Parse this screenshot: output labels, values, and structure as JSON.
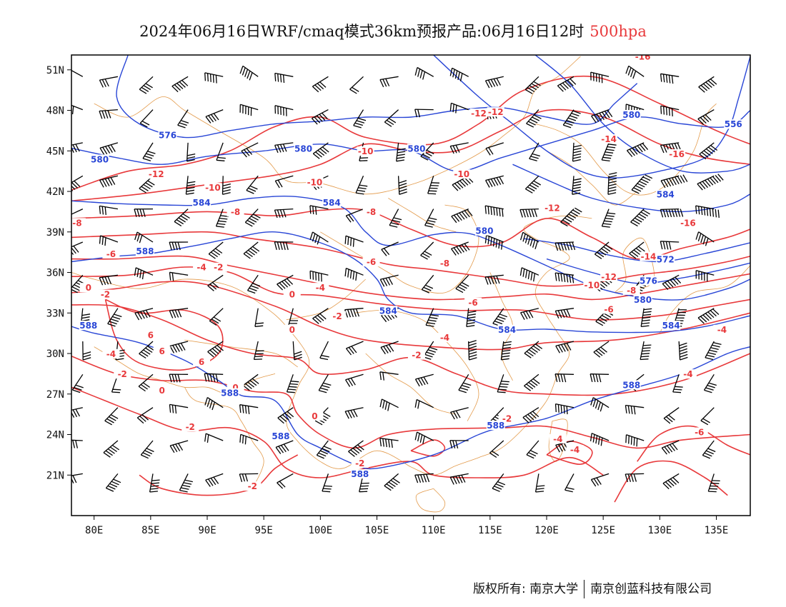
{
  "header": {
    "title": "2024年06月16日WRF/cmaq模式36km预报产品:06月16日12时",
    "level": "500hpa"
  },
  "map": {
    "lat_labels": [
      "51N",
      "48N",
      "45N",
      "42N",
      "39N",
      "36N",
      "33N",
      "30N",
      "27N",
      "24N",
      "21N"
    ],
    "lon_labels": [
      "80E",
      "85E",
      "90E",
      "95E",
      "100E",
      "105E",
      "110E",
      "115E",
      "120E",
      "125E",
      "130E",
      "135E"
    ],
    "colors": {
      "height": "#2946d6",
      "temperature": "#e8393b",
      "boundary": "#e39a4a",
      "wind": "#000000"
    },
    "height_labels": [
      {
        "text": "576",
        "lon": 86.5,
        "lat": 46.0
      },
      {
        "text": "580",
        "lon": 98.5,
        "lat": 45.0
      },
      {
        "text": "580",
        "lon": 108.5,
        "lat": 45.0
      },
      {
        "text": "580",
        "lon": 80.5,
        "lat": 44.2
      },
      {
        "text": "584",
        "lon": 89.5,
        "lat": 41.0
      },
      {
        "text": "584",
        "lon": 101.0,
        "lat": 41.0
      },
      {
        "text": "580",
        "lon": 114.5,
        "lat": 38.9
      },
      {
        "text": "588",
        "lon": 84.5,
        "lat": 37.4
      },
      {
        "text": "584",
        "lon": 106.0,
        "lat": 33.0
      },
      {
        "text": "588",
        "lon": 79.5,
        "lat": 31.9
      },
      {
        "text": "584",
        "lon": 116.5,
        "lat": 31.6
      },
      {
        "text": "588",
        "lon": 92.0,
        "lat": 26.9
      },
      {
        "text": "588",
        "lon": 96.5,
        "lat": 23.7
      },
      {
        "text": "588",
        "lon": 103.5,
        "lat": 20.9
      },
      {
        "text": "588",
        "lon": 115.5,
        "lat": 24.5
      },
      {
        "text": "588",
        "lon": 127.5,
        "lat": 27.5
      },
      {
        "text": "580",
        "lon": 127.5,
        "lat": 47.5
      },
      {
        "text": "556",
        "lon": 136.5,
        "lat": 46.8
      },
      {
        "text": "584",
        "lon": 130.5,
        "lat": 41.6
      },
      {
        "text": "572",
        "lon": 130.5,
        "lat": 36.8
      },
      {
        "text": "576",
        "lon": 129.0,
        "lat": 35.2
      },
      {
        "text": "580",
        "lon": 128.5,
        "lat": 33.8
      },
      {
        "text": "584",
        "lon": 131.0,
        "lat": 31.9
      }
    ],
    "temperature_labels": [
      {
        "text": "-12",
        "lon": 85.5,
        "lat": 43.1
      },
      {
        "text": "-10",
        "lon": 90.5,
        "lat": 42.1
      },
      {
        "text": "-8",
        "lon": 92.5,
        "lat": 40.3
      },
      {
        "text": "-8",
        "lon": 78.5,
        "lat": 39.5
      },
      {
        "text": "-6",
        "lon": 81.5,
        "lat": 37.2
      },
      {
        "text": "-10",
        "lon": 99.5,
        "lat": 42.5
      },
      {
        "text": "-10",
        "lon": 104.0,
        "lat": 44.8
      },
      {
        "text": "-8",
        "lon": 104.5,
        "lat": 40.3
      },
      {
        "text": "-10",
        "lon": 112.5,
        "lat": 43.1
      },
      {
        "text": "-12",
        "lon": 114.0,
        "lat": 47.6
      },
      {
        "text": "-12",
        "lon": 115.5,
        "lat": 47.7
      },
      {
        "text": "-12",
        "lon": 120.5,
        "lat": 40.6
      },
      {
        "text": "-14",
        "lon": 125.5,
        "lat": 45.7
      },
      {
        "text": "-16",
        "lon": 128.5,
        "lat": 51.8
      },
      {
        "text": "-16",
        "lon": 131.5,
        "lat": 44.6
      },
      {
        "text": "-16",
        "lon": 132.5,
        "lat": 39.5
      },
      {
        "text": "-14",
        "lon": 129.0,
        "lat": 37.0
      },
      {
        "text": "-12",
        "lon": 125.5,
        "lat": 35.5
      },
      {
        "text": "-10",
        "lon": 124.0,
        "lat": 34.9
      },
      {
        "text": "-8",
        "lon": 127.5,
        "lat": 34.5
      },
      {
        "text": "-6",
        "lon": 125.5,
        "lat": 33.1
      },
      {
        "text": "-4",
        "lon": 89.5,
        "lat": 36.2
      },
      {
        "text": "-2",
        "lon": 91.0,
        "lat": 36.2
      },
      {
        "text": "0",
        "lon": 79.5,
        "lat": 34.7
      },
      {
        "text": "-2",
        "lon": 81.0,
        "lat": 34.2
      },
      {
        "text": "0",
        "lon": 97.5,
        "lat": 34.2
      },
      {
        "text": "-4",
        "lon": 100.0,
        "lat": 34.7
      },
      {
        "text": "-6",
        "lon": 104.5,
        "lat": 36.6
      },
      {
        "text": "-8",
        "lon": 111.0,
        "lat": 36.5
      },
      {
        "text": "-6",
        "lon": 113.5,
        "lat": 33.6
      },
      {
        "text": "-2",
        "lon": 101.5,
        "lat": 32.6
      },
      {
        "text": "0",
        "lon": 97.5,
        "lat": 31.6
      },
      {
        "text": "6",
        "lon": 85.0,
        "lat": 31.2
      },
      {
        "text": "6",
        "lon": 86.0,
        "lat": 30.0
      },
      {
        "text": "6",
        "lon": 89.5,
        "lat": 29.2
      },
      {
        "text": "-4",
        "lon": 81.5,
        "lat": 29.8
      },
      {
        "text": "-2",
        "lon": 82.5,
        "lat": 28.3
      },
      {
        "text": "0",
        "lon": 86.0,
        "lat": 27.1
      },
      {
        "text": "0",
        "lon": 92.5,
        "lat": 27.3
      },
      {
        "text": "-2",
        "lon": 88.5,
        "lat": 24.4
      },
      {
        "text": "0",
        "lon": 99.5,
        "lat": 25.2
      },
      {
        "text": "-2",
        "lon": 108.5,
        "lat": 29.7
      },
      {
        "text": "-4",
        "lon": 111.0,
        "lat": 31.0
      },
      {
        "text": "-2",
        "lon": 103.5,
        "lat": 21.7
      },
      {
        "text": "-2",
        "lon": 94.0,
        "lat": 20.0
      },
      {
        "text": "-2",
        "lon": 116.5,
        "lat": 25.0
      },
      {
        "text": "-4",
        "lon": 121.0,
        "lat": 23.5
      },
      {
        "text": "-4",
        "lon": 122.5,
        "lat": 22.7
      },
      {
        "text": "-4",
        "lon": 135.5,
        "lat": 31.6
      },
      {
        "text": "-4",
        "lon": 132.5,
        "lat": 28.3
      },
      {
        "text": "-6",
        "lon": 133.5,
        "lat": 24.0
      }
    ]
  },
  "footer": {
    "copyright_label": "版权所有:",
    "org1": "南京大学",
    "org2": "南京创蓝科技有限公司"
  }
}
